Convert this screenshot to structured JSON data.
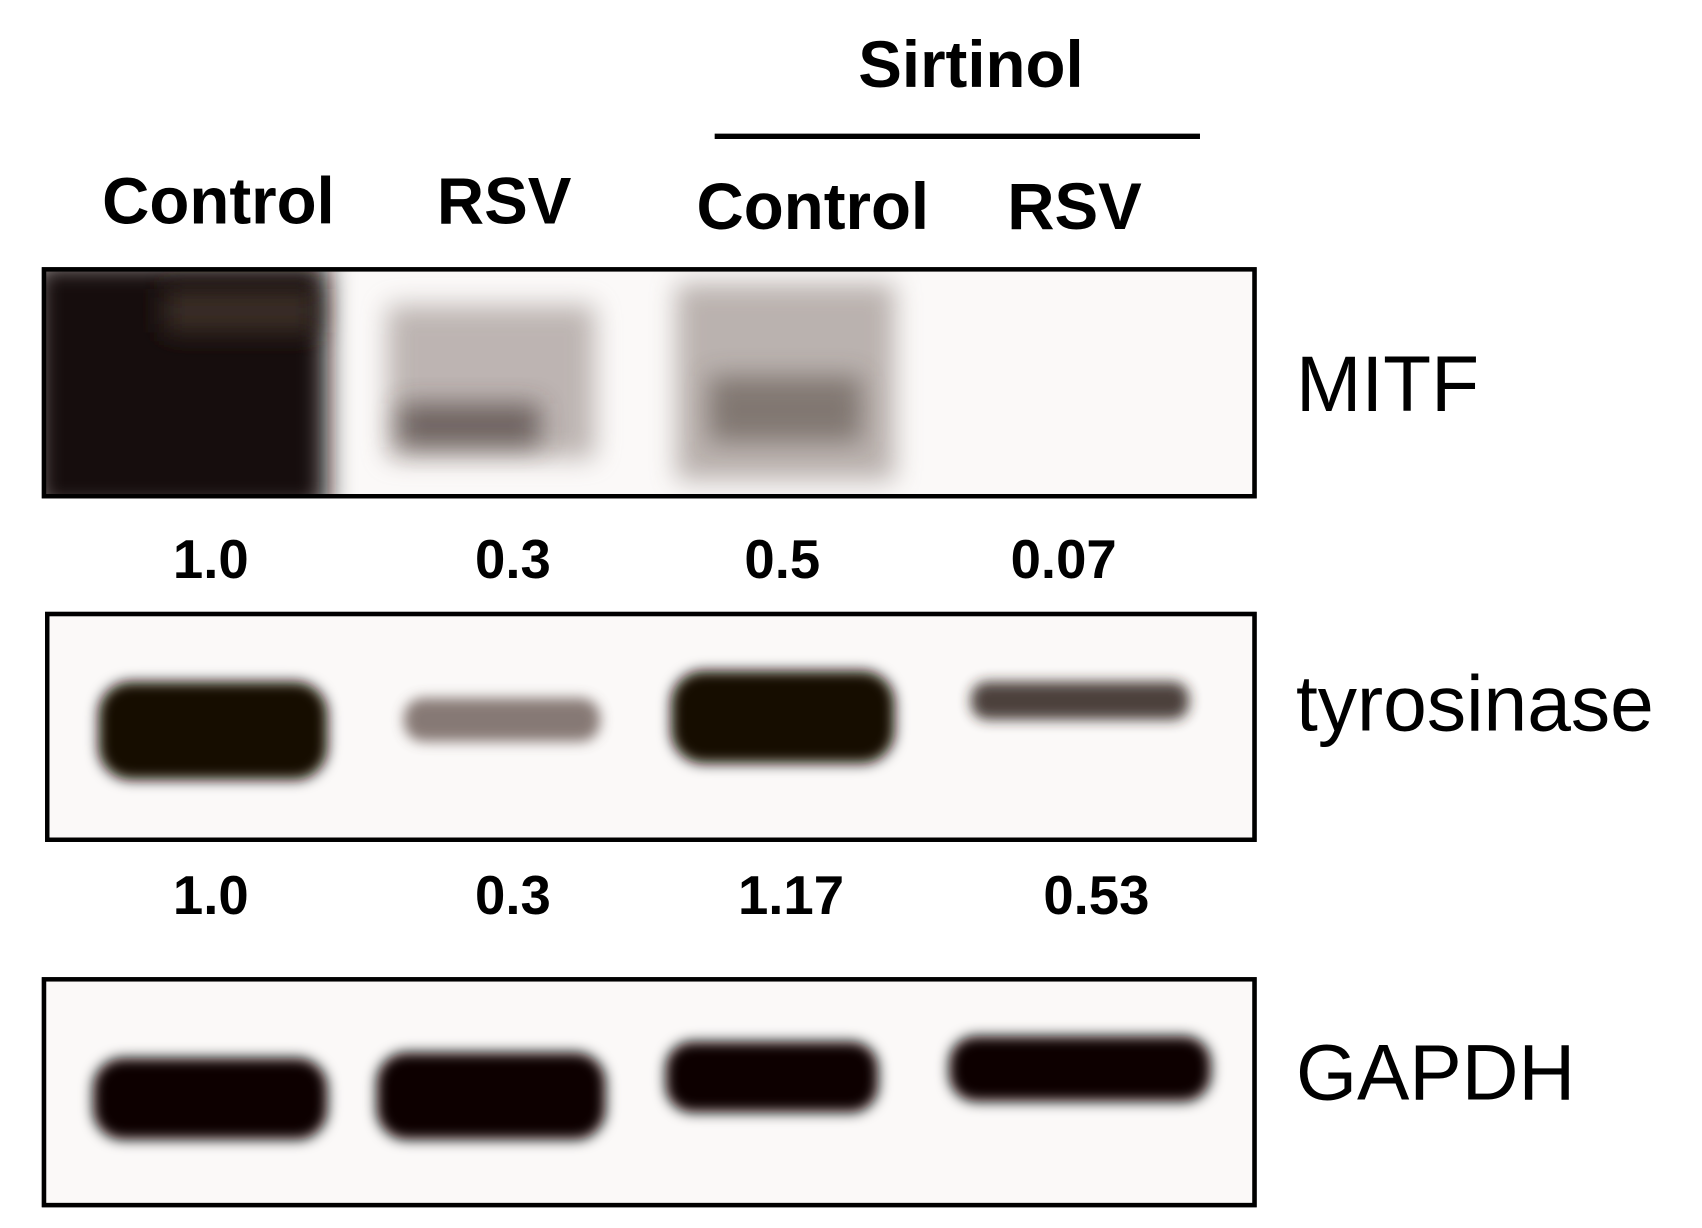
{
  "header": {
    "group": "Sirtinol",
    "lanes": [
      "Control",
      "RSV",
      "Control",
      "RSV"
    ]
  },
  "blots": [
    {
      "label": "MITF",
      "quantities": [
        "1.0",
        "0.3",
        "0.5",
        "0.07"
      ]
    },
    {
      "label": "tyrosinase",
      "quantities": [
        "1.0",
        "0.3",
        "1.17",
        "0.53"
      ]
    },
    {
      "label": "GAPDH"
    }
  ]
}
